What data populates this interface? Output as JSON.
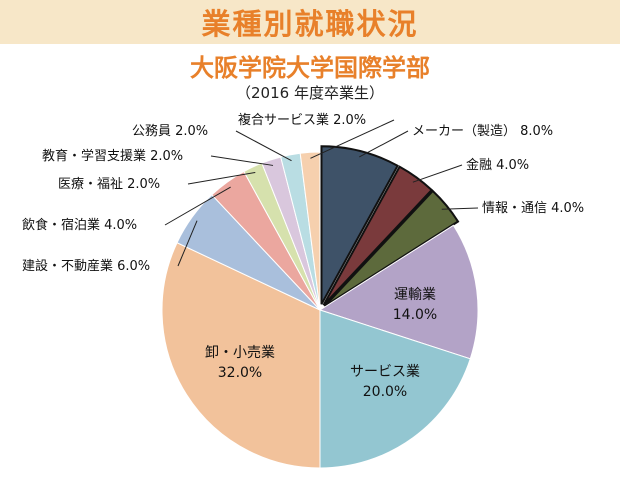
{
  "header": {
    "title": "業種別就職状況",
    "subtitle": "大阪学院大学国際学部",
    "year_note": "（2016 年度卒業生）"
  },
  "chart_data": {
    "type": "pie",
    "title": "業種別就職状況",
    "subtitle": "大阪学院大学国際学部",
    "note": "（2016 年度卒業生）",
    "slices": [
      {
        "label": "メーカー（製造）",
        "value": 8.0,
        "display": "8.0%",
        "color": "#3e5268",
        "exploded": true
      },
      {
        "label": "金融",
        "value": 4.0,
        "display": "4.0%",
        "color": "#7a3a3c",
        "exploded": true
      },
      {
        "label": "情報・通信",
        "value": 4.0,
        "display": "4.0%",
        "color": "#5d6a3c",
        "exploded": true
      },
      {
        "label": "運輸業",
        "value": 14.0,
        "display": "14.0%",
        "color": "#b3a3c7",
        "exploded": false
      },
      {
        "label": "サービス業",
        "value": 20.0,
        "display": "20.0%",
        "color": "#93c6d1",
        "exploded": false
      },
      {
        "label": "卸・小売業",
        "value": 32.0,
        "display": "32.0%",
        "color": "#f2c29b",
        "exploded": false
      },
      {
        "label": "建設・不動産業",
        "value": 6.0,
        "display": "6.0%",
        "color": "#a9bfdc",
        "exploded": false
      },
      {
        "label": "飲食・宿泊業",
        "value": 4.0,
        "display": "4.0%",
        "color": "#eba79f",
        "exploded": false
      },
      {
        "label": "医療・福祉",
        "value": 2.0,
        "display": "2.0%",
        "color": "#d6e1ad",
        "exploded": false
      },
      {
        "label": "教育・学習支援業",
        "value": 2.0,
        "display": "2.0%",
        "color": "#d9c7dd",
        "exploded": false
      },
      {
        "label": "公務員",
        "value": 2.0,
        "display": "2.0%",
        "color": "#b9dde3",
        "exploded": false
      },
      {
        "label": "複合サービス業",
        "value": 2.0,
        "display": "2.0%",
        "color": "#f6d0ae",
        "exploded": false
      }
    ]
  }
}
